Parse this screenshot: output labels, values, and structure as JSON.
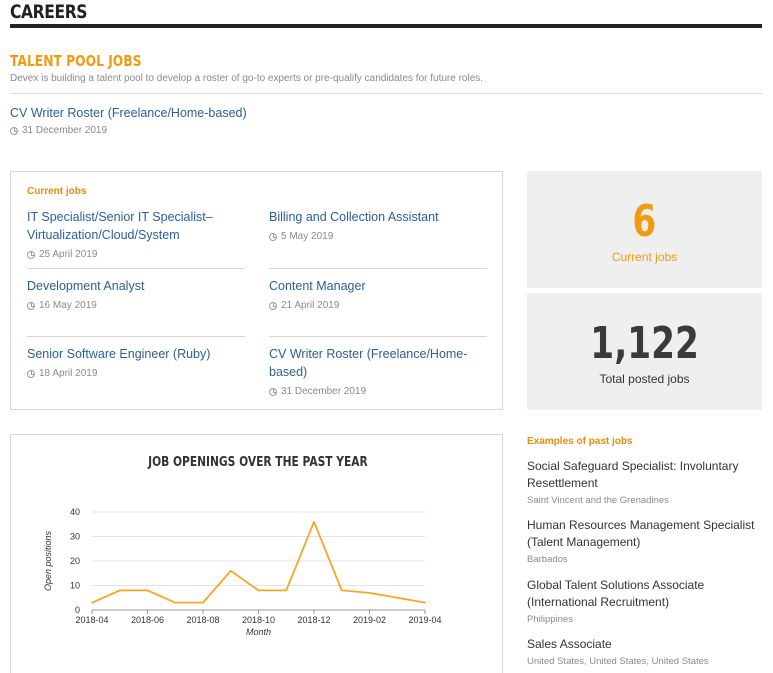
{
  "header": {
    "title": "CAREERS"
  },
  "talent_pool": {
    "title": "TALENT POOL JOBS",
    "description": "Devex is building a talent pool to develop a roster of go-to experts or pre-qualify candidates for future roles.",
    "job": {
      "title": "CV Writer Roster (Freelance/Home-based)",
      "date": "31 December 2019"
    }
  },
  "current_jobs": {
    "heading": "Current jobs",
    "items": [
      {
        "title": "IT Specialist/Senior IT Specialist–Virtualization/Cloud/System",
        "date": "25 April 2019"
      },
      {
        "title": "Billing and Collection Assistant",
        "date": "5 May 2019"
      },
      {
        "title": "Development Analyst",
        "date": "16 May 2019"
      },
      {
        "title": "Content Manager",
        "date": "21 April 2019"
      },
      {
        "title": "Senior Software Engineer (Ruby)",
        "date": "18 April 2019"
      },
      {
        "title": "CV Writer Roster (Freelance/Home-based)",
        "date": "31 December 2019"
      }
    ]
  },
  "stats": {
    "current": {
      "value": "6",
      "label": "Current jobs"
    },
    "total": {
      "value": "1,122",
      "label": "Total posted jobs"
    }
  },
  "past_jobs": {
    "heading": "Examples of past jobs",
    "items": [
      {
        "title": "Social Safeguard Specialist: Involuntary Resettlement",
        "location": "Saint Vincent and the Grenadines"
      },
      {
        "title": "Human Resources Management Specialist (Talent Management)",
        "location": "Barbados"
      },
      {
        "title": "Global Talent Solutions Associate (International Recruitment)",
        "location": "Philippines"
      },
      {
        "title": "Sales Associate",
        "location": "United States, United States, United States"
      }
    ]
  },
  "chart_data": {
    "type": "line",
    "title": "JOB OPENINGS OVER THE PAST YEAR",
    "xlabel": "Month",
    "ylabel": "Open positions",
    "x": [
      "2018-04",
      "2018-05",
      "2018-06",
      "2018-07",
      "2018-08",
      "2018-09",
      "2018-10",
      "2018-11",
      "2018-12",
      "2019-01",
      "2019-02",
      "2019-03",
      "2019-04"
    ],
    "x_ticks": [
      "2018-04",
      "2018-06",
      "2018-08",
      "2018-10",
      "2018-12",
      "2019-02",
      "2019-04"
    ],
    "series": [
      {
        "values": [
          3,
          8,
          8,
          3,
          3,
          16,
          8,
          8,
          36,
          8,
          7,
          5,
          3
        ]
      }
    ],
    "y_ticks": [
      0,
      10,
      20,
      30,
      40
    ],
    "ylim": [
      0,
      40
    ],
    "grid": true,
    "color": "#f5a623"
  }
}
